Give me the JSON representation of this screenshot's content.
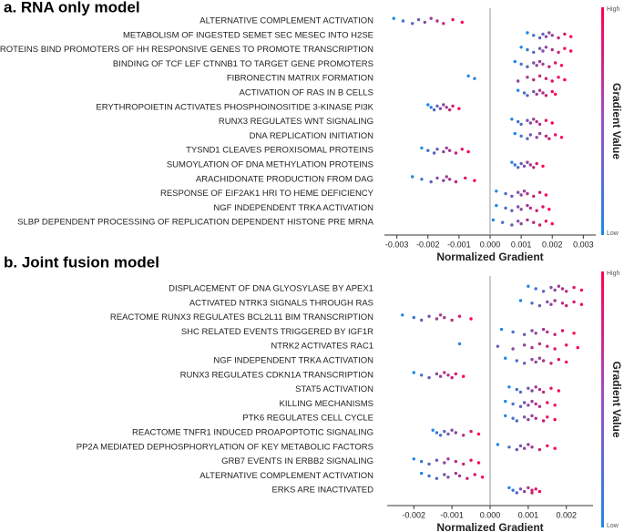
{
  "chart_data": [
    {
      "type": "beeswarm",
      "title": "a. RNA only model",
      "xlabel": "Normalized Gradient",
      "colorbar_label": "Gradient Value",
      "colorbar_high": "High",
      "colorbar_low": "Low",
      "color_low": "#1e88e5",
      "color_high": "#ff0052",
      "xlim": [
        -0.0034,
        0.0034
      ],
      "xticks": [
        -0.003,
        -0.002,
        -0.001,
        {
          "value": 0,
          "label": "0.000"
        },
        0.001,
        0.002,
        0.003
      ],
      "categories": [
        "ALTERNATIVE COMPLEMENT ACTIVATION",
        "METABOLISM OF INGESTED SEMET SEC MESEC INTO H2SE",
        "GLI PROTEINS BIND PROMOTERS OF HH RESPONSIVE GENES TO PROMOTE TRANSCRIPTION",
        "BINDING OF TCF LEF CTNNB1 TO TARGET GENE PROMOTERS",
        "FIBRONECTIN MATRIX FORMATION",
        "ACTIVATION OF RAS IN B CELLS",
        "ERYTHROPOIETIN ACTIVATES PHOSPHOINOSITIDE 3-KINASE PI3K",
        "RUNX3 REGULATES WNT SIGNALING",
        "DNA REPLICATION INITIATION",
        "TYSND1 CLEAVES PEROXISOMAL PROTEINS",
        "SUMOYLATION OF DNA METHYLATION PROTEINS",
        "ARACHIDONATE PRODUCTION FROM DAG",
        "RESPONSE OF EIF2AK1 HRI TO HEME DEFICIENCY",
        "NGF INDEPENDENT TRKA ACTIVATION",
        "SLBP DEPENDENT PROCESSING OF REPLICATION DEPENDENT HISTONE PRE MRNA"
      ],
      "values": [
        [
          -0.0031,
          -0.0028,
          -0.0025,
          -0.0023,
          -0.0021,
          -0.0019,
          -0.0017,
          -0.0015,
          -0.0012,
          -0.0009
        ],
        [
          0.0012,
          0.0014,
          0.0016,
          0.0017,
          0.0018,
          0.0019,
          0.002,
          0.0022,
          0.0024,
          0.0026
        ],
        [
          0.001,
          0.0012,
          0.0014,
          0.0016,
          0.0017,
          0.0018,
          0.002,
          0.0022,
          0.0024,
          0.0026
        ],
        [
          0.0008,
          0.001,
          0.0012,
          0.0014,
          0.0015,
          0.0016,
          0.0017,
          0.0019,
          0.0021,
          0.0023
        ],
        [
          -0.0007,
          -0.0005,
          0.0009,
          0.0012,
          0.0014,
          0.0016,
          0.0018,
          0.002,
          0.0022,
          0.0024
        ],
        [
          0.0009,
          0.0011,
          0.0012,
          0.0014,
          0.0015,
          0.0016,
          0.0017,
          0.0018,
          0.002,
          0.0021
        ],
        [
          -0.002,
          -0.0019,
          -0.0018,
          -0.0017,
          -0.0016,
          -0.0015,
          -0.0014,
          -0.0013,
          -0.0012,
          -0.001
        ],
        [
          0.0007,
          0.0009,
          0.001,
          0.0012,
          0.0013,
          0.0014,
          0.0015,
          0.0016,
          0.0018,
          0.002
        ],
        [
          0.0008,
          0.001,
          0.0012,
          0.0013,
          0.0015,
          0.0016,
          0.0018,
          0.0019,
          0.0021,
          0.0023
        ],
        [
          -0.0022,
          -0.002,
          -0.0018,
          -0.0017,
          -0.0015,
          -0.0014,
          -0.0013,
          -0.0011,
          -0.0009,
          -0.0007
        ],
        [
          0.0007,
          0.0008,
          0.0009,
          0.001,
          0.0011,
          0.0012,
          0.0013,
          0.0014,
          0.0015,
          0.0017
        ],
        [
          -0.0025,
          -0.0022,
          -0.0019,
          -0.0017,
          -0.0015,
          -0.0014,
          -0.0013,
          -0.0011,
          -0.0008,
          -0.0005
        ],
        [
          0.0002,
          0.0005,
          0.0007,
          0.0009,
          0.001,
          0.0011,
          0.0012,
          0.0014,
          0.0016,
          0.0018
        ],
        [
          0.0002,
          0.0005,
          0.0007,
          0.0009,
          0.001,
          0.0012,
          0.0013,
          0.0015,
          0.0017,
          0.0019
        ],
        [
          0.0001,
          0.0004,
          0.0007,
          0.0009,
          0.001,
          0.0012,
          0.0014,
          0.0016,
          0.0018,
          0.002
        ]
      ]
    },
    {
      "type": "beeswarm",
      "title": "b. Joint fusion model",
      "xlabel": "Normalized Gradient",
      "colorbar_label": "Gradient Value",
      "colorbar_high": "High",
      "colorbar_low": "Low",
      "color_low": "#1e88e5",
      "color_high": "#ff0052",
      "xlim": [
        -0.0027,
        0.0027
      ],
      "xticks": [
        -0.002,
        -0.001,
        {
          "value": 0,
          "label": "0.000"
        },
        0.001,
        0.002
      ],
      "categories": [
        "DISPLACEMENT OF DNA GLYOSYLASE BY APEX1",
        "ACTIVATED NTRK3 SIGNALS THROUGH RAS",
        "REACTOME RUNX3 REGULATES BCL2L11 BIM TRANSCRIPTION",
        "SHC RELATED EVENTS TRIGGERED BY IGF1R",
        "NTRK2 ACTIVATES RAC1",
        "NGF INDEPENDENT TRKA ACTIVATION",
        "RUNX3 REGULATES CDKN1A TRANSCRIPTION",
        "STAT5 ACTIVATION",
        "KILLING MECHANISMS",
        "PTK6 REGULATES CELL CYCLE",
        "REACTOME TNFR1 INDUCED PROAPOPTOTIC SIGNALING",
        "PP2A MEDIATED DEPHOSPHORYLATION OF KEY METABOLIC FACTORS",
        "GRB7 EVENTS IN ERBB2 SIGNALING",
        "ALTERNATIVE COMPLEMENT ACTIVATION",
        "ERKS ARE INACTIVATED"
      ],
      "values": [
        [
          0.001,
          0.0012,
          0.0014,
          0.0016,
          0.0017,
          0.0018,
          0.0019,
          0.002,
          0.0022,
          0.0024
        ],
        [
          0.0008,
          0.0011,
          0.0013,
          0.0015,
          0.0016,
          0.0017,
          0.0019,
          0.002,
          0.0022,
          0.0024
        ],
        [
          -0.0023,
          -0.002,
          -0.0018,
          -0.0016,
          -0.0014,
          -0.0013,
          -0.0012,
          -0.001,
          -0.0008,
          -0.0005
        ],
        [
          0.0003,
          0.0006,
          0.0009,
          0.0011,
          0.0012,
          0.0014,
          0.0015,
          0.0017,
          0.0019,
          0.0022
        ],
        [
          -0.0008,
          0.0002,
          0.0006,
          0.0009,
          0.0011,
          0.0013,
          0.0015,
          0.0017,
          0.002,
          0.0023
        ],
        [
          0.0004,
          0.0007,
          0.0009,
          0.0011,
          0.0012,
          0.0013,
          0.0014,
          0.0016,
          0.0018,
          0.002
        ],
        [
          -0.002,
          -0.0018,
          -0.0016,
          -0.0014,
          -0.0013,
          -0.0012,
          -0.0011,
          -0.001,
          -0.0009,
          -0.0007
        ],
        [
          0.0005,
          0.0007,
          0.0008,
          0.001,
          0.0011,
          0.0012,
          0.0013,
          0.0014,
          0.0016,
          0.0018
        ],
        [
          0.0004,
          0.0006,
          0.0008,
          0.0009,
          0.001,
          0.0011,
          0.0012,
          0.0013,
          0.0015,
          0.0017
        ],
        [
          0.0004,
          0.0006,
          0.0007,
          0.0009,
          0.001,
          0.0011,
          0.0012,
          0.0014,
          0.0015,
          0.0017
        ],
        [
          -0.0015,
          -0.0014,
          -0.0013,
          -0.0012,
          -0.0011,
          -0.001,
          -0.0009,
          -0.0007,
          -0.0005,
          -0.0003
        ],
        [
          0.0002,
          0.0005,
          0.0007,
          0.0008,
          0.0009,
          0.001,
          0.0011,
          0.0013,
          0.0015,
          0.0017
        ],
        [
          -0.002,
          -0.0018,
          -0.0016,
          -0.0014,
          -0.0012,
          -0.0011,
          -0.0009,
          -0.0007,
          -0.0005,
          -0.0003
        ],
        [
          -0.0018,
          -0.0016,
          -0.0014,
          -0.0012,
          -0.0011,
          -0.0009,
          -0.0008,
          -0.0006,
          -0.0004,
          -0.0002
        ],
        [
          0.0005,
          0.0006,
          0.0007,
          0.0008,
          0.0009,
          0.001,
          0.0011,
          0.0011,
          0.0012,
          0.0013
        ]
      ]
    }
  ]
}
